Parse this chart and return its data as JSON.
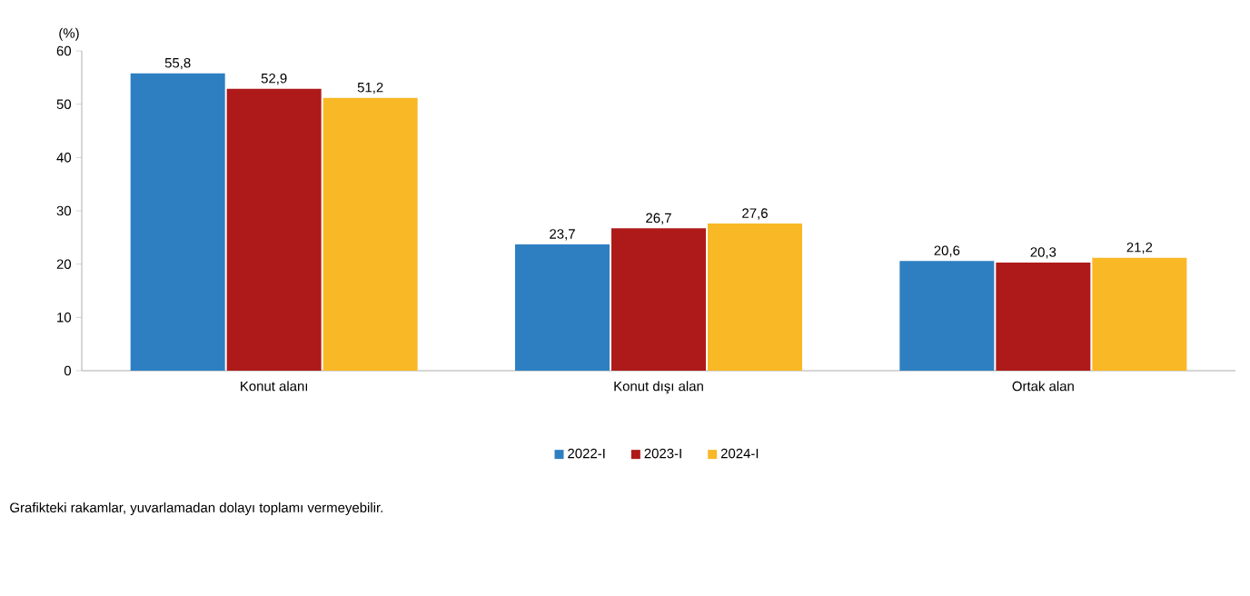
{
  "chart_data": {
    "type": "bar",
    "ylabel": "(%)",
    "categories": [
      "Konut alanı",
      "Konut dışı alan",
      "Ortak alan"
    ],
    "series": [
      {
        "name": "2022-I",
        "color": "#2e7fc1",
        "values": [
          55.8,
          23.7,
          20.6
        ],
        "value_labels": [
          "55,8",
          "23,7",
          "20,6"
        ]
      },
      {
        "name": "2023-I",
        "color": "#ae1a1a",
        "values": [
          52.9,
          26.7,
          20.3
        ],
        "value_labels": [
          "52,9",
          "26,7",
          "20,3"
        ]
      },
      {
        "name": "2024-I",
        "color": "#f9b826",
        "values": [
          51.2,
          27.6,
          21.2
        ],
        "value_labels": [
          "51,2",
          "27,6",
          "21,2"
        ]
      }
    ],
    "ylim": [
      0,
      60
    ],
    "yticks": [
      0,
      10,
      20,
      30,
      40,
      50,
      60
    ],
    "legend": "bottom",
    "annotations": [
      "Grafikteki rakamlar, yuvarlamadan dolayı toplamı vermeyebilir."
    ]
  }
}
